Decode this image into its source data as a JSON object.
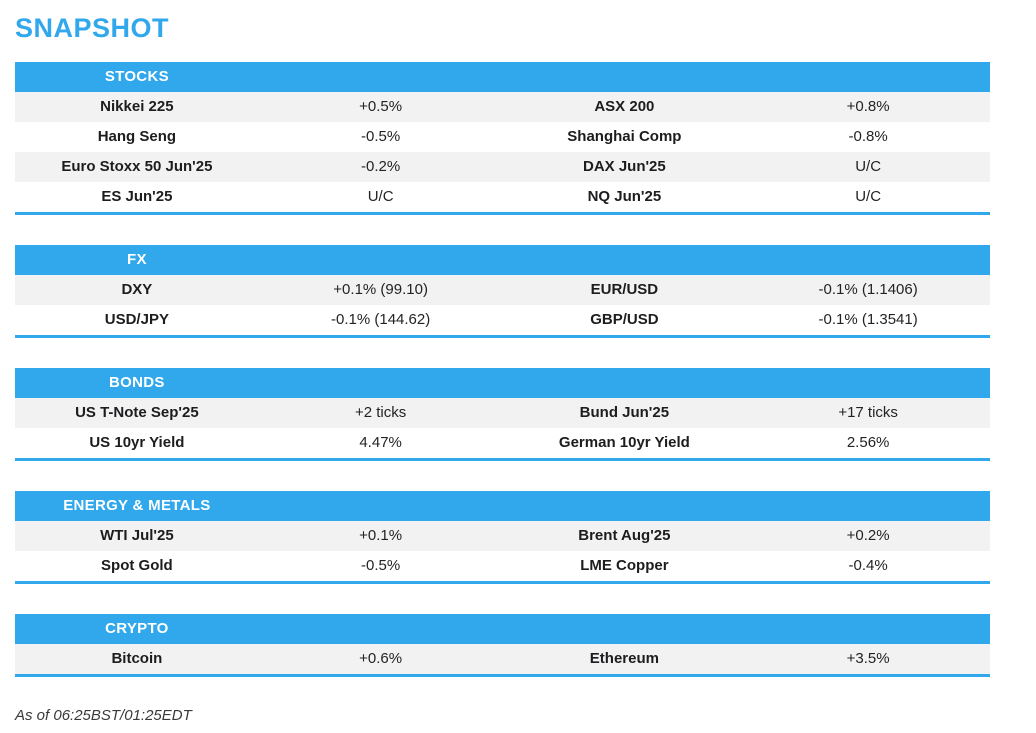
{
  "page": {
    "title": "SNAPSHOT",
    "footer": "As of 06:25BST/01:25EDT"
  },
  "colors": {
    "accent": "#31a8ec",
    "row_alt": "#f2f2f2",
    "text": "#1d1d1f"
  },
  "sections": [
    {
      "label": "STOCKS",
      "rows": [
        [
          "Nikkei 225",
          "+0.5%",
          "ASX 200",
          "+0.8%"
        ],
        [
          "Hang Seng",
          "-0.5%",
          "Shanghai Comp",
          "-0.8%"
        ],
        [
          "Euro Stoxx 50 Jun'25",
          "-0.2%",
          "DAX Jun'25",
          "U/C"
        ],
        [
          "ES Jun'25",
          "U/C",
          "NQ Jun'25",
          "U/C"
        ]
      ]
    },
    {
      "label": "FX",
      "rows": [
        [
          "DXY",
          "+0.1% (99.10)",
          "EUR/USD",
          "-0.1% (1.1406)"
        ],
        [
          "USD/JPY",
          "-0.1% (144.62)",
          "GBP/USD",
          "-0.1% (1.3541)"
        ]
      ]
    },
    {
      "label": "BONDS",
      "rows": [
        [
          "US T-Note Sep'25",
          "+2 ticks",
          "Bund Jun'25",
          "+17 ticks"
        ],
        [
          "US 10yr Yield",
          "4.47%",
          "German 10yr Yield",
          "2.56%"
        ]
      ]
    },
    {
      "label": "ENERGY & METALS",
      "rows": [
        [
          "WTI Jul'25",
          "+0.1%",
          "Brent Aug'25",
          "+0.2%"
        ],
        [
          "Spot Gold",
          "-0.5%",
          "LME Copper",
          "-0.4%"
        ]
      ]
    },
    {
      "label": "CRYPTO",
      "rows": [
        [
          "Bitcoin",
          "+0.6%",
          "Ethereum",
          "+3.5%"
        ]
      ]
    }
  ]
}
